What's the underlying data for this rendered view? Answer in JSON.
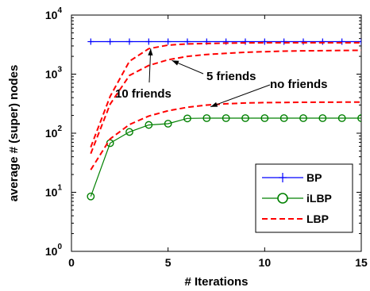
{
  "chart_data": {
    "type": "line",
    "title": "",
    "xlabel": "# Iterations",
    "ylabel": "average # (super) nodes",
    "xlim": [
      0,
      15
    ],
    "ylim": [
      1,
      10000
    ],
    "yscale": "log",
    "grid": false,
    "legend_position": "lower-right",
    "x_ticks": [
      "0",
      "5",
      "10",
      "15"
    ],
    "x_tick_values": [
      0,
      5,
      10,
      15
    ],
    "y_ticks": [
      {
        "base": "10",
        "exp": "0",
        "value": 1
      },
      {
        "base": "10",
        "exp": "1",
        "value": 10
      },
      {
        "base": "10",
        "exp": "2",
        "value": 100
      },
      {
        "base": "10",
        "exp": "3",
        "value": 1000
      },
      {
        "base": "10",
        "exp": "4",
        "value": 10000
      }
    ],
    "series": [
      {
        "name": "BP",
        "color": "#0000ff",
        "dash": "solid",
        "marker": "plus",
        "x": [
          1,
          2,
          3,
          4,
          5,
          6,
          7,
          8,
          9,
          10,
          11,
          12,
          13,
          14,
          15
        ],
        "y": [
          3550,
          3550,
          3550,
          3550,
          3550,
          3550,
          3550,
          3550,
          3550,
          3550,
          3550,
          3550,
          3550,
          3550,
          3550
        ]
      },
      {
        "name": "iLBP",
        "color": "#008000",
        "dash": "solid",
        "marker": "circle",
        "x": [
          1,
          2,
          3,
          4,
          5,
          6,
          7,
          8,
          9,
          10,
          11,
          12,
          13,
          14,
          15
        ],
        "y": [
          8.5,
          68,
          105,
          138,
          145,
          178,
          180,
          180,
          180,
          180,
          180,
          180,
          180,
          180,
          180
        ]
      },
      {
        "name": "LBP",
        "color": "#ff0000",
        "dash": "dashed",
        "marker": "none",
        "x": [
          1,
          2,
          3,
          4,
          5,
          6,
          7,
          8,
          9,
          10,
          11,
          12,
          13,
          14,
          15
        ],
        "y": [
          58,
          420,
          1650,
          2700,
          3100,
          3250,
          3300,
          3350,
          3380,
          3400,
          3400,
          3400,
          3400,
          3400,
          3400
        ]
      },
      {
        "name": "",
        "color": "#ff0000",
        "dash": "dashed",
        "marker": "none",
        "x": [
          1,
          2,
          3,
          4,
          5,
          6,
          7,
          8,
          9,
          10,
          11,
          12,
          13,
          14,
          15
        ],
        "y": [
          45,
          310,
          950,
          1400,
          1750,
          2000,
          2150,
          2250,
          2350,
          2400,
          2450,
          2480,
          2500,
          2520,
          2530
        ]
      },
      {
        "name": "",
        "color": "#ff0000",
        "dash": "dashed",
        "marker": "none",
        "x": [
          1,
          2,
          3,
          4,
          5,
          6,
          7,
          8,
          9,
          10,
          11,
          12,
          13,
          14,
          15
        ],
        "y": [
          24,
          80,
          140,
          195,
          240,
          275,
          300,
          315,
          325,
          330,
          332,
          334,
          335,
          336,
          337
        ]
      }
    ],
    "annotations": [
      {
        "text": "10 friends",
        "arrow_x": 4.1,
        "arrow_y": 2700
      },
      {
        "text": "5 friends",
        "arrow_x": 5.2,
        "arrow_y": 1700
      },
      {
        "text": "no friends",
        "arrow_x": 7.2,
        "arrow_y": 280
      }
    ]
  }
}
